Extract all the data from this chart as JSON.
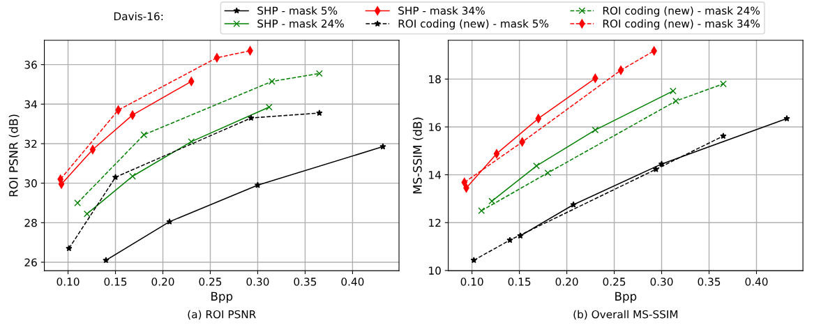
{
  "chart_data": [
    {
      "type": "line",
      "xlabel": "Bpp",
      "ylabel": "ROI PSNR (dB)",
      "annotations": [
        "(a) ROI PSNR"
      ],
      "legend": "top",
      "legend_title": "Davis-16:",
      "grid": true,
      "xlim": [
        0.075,
        0.449
      ],
      "ylim": [
        25.57,
        37.23
      ],
      "xticks": [
        {
          "value": 0.1,
          "label": "0.10"
        },
        0.15,
        {
          "value": 0.2,
          "label": "0.20"
        },
        0.25,
        {
          "value": 0.3,
          "label": "0.30"
        },
        0.35,
        {
          "value": 0.4,
          "label": "0.40"
        }
      ],
      "yticks": [
        26,
        28,
        30,
        32,
        34,
        36
      ],
      "series": [
        {
          "name": "SHP - mask 5%",
          "color": "#000000",
          "marker": "star",
          "line_style": "solid",
          "x": [
            0.14,
            0.207,
            0.3,
            0.432
          ],
          "values": [
            26.1,
            28.05,
            29.9,
            31.85
          ]
        },
        {
          "name": "SHP - mask 24%",
          "color": "#008000",
          "marker": "cross",
          "line_style": "solid",
          "x": [
            0.12,
            0.168,
            0.23,
            0.312
          ],
          "values": [
            28.45,
            30.35,
            32.1,
            33.85
          ]
        },
        {
          "name": "SHP - mask 34%",
          "color": "#ff0000",
          "marker": "diamond",
          "line_style": "solid",
          "x": [
            0.093,
            0.126,
            0.168,
            0.23
          ],
          "values": [
            29.95,
            31.7,
            33.45,
            35.15
          ]
        },
        {
          "name": "ROI coding (new) - mask 5%",
          "color": "#000000",
          "marker": "star",
          "line_style": "dashed",
          "x": [
            0.101,
            0.15,
            0.293,
            0.365
          ],
          "values": [
            26.7,
            30.3,
            33.3,
            33.55
          ]
        },
        {
          "name": "ROI coding (new) - mask 24%",
          "color": "#008000",
          "marker": "cross",
          "line_style": "dashed",
          "x": [
            0.11,
            0.18,
            0.315,
            0.365
          ],
          "values": [
            29.0,
            32.45,
            35.15,
            35.55
          ]
        },
        {
          "name": "ROI coding (new) - mask 34%",
          "color": "#ff0000",
          "marker": "diamond",
          "line_style": "dashed",
          "x": [
            0.092,
            0.153,
            0.257,
            0.292
          ],
          "values": [
            30.2,
            33.7,
            36.35,
            36.7
          ]
        }
      ]
    },
    {
      "type": "line",
      "xlabel": "Bpp",
      "ylabel": "MS-SSIM (dB)",
      "annotations": [
        "(b) Overall MS-SSIM"
      ],
      "grid": true,
      "xlim": [
        0.075,
        0.449
      ],
      "ylim": [
        9.99,
        19.62
      ],
      "xticks": [
        {
          "value": 0.1,
          "label": "0.10"
        },
        0.15,
        {
          "value": 0.2,
          "label": "0.20"
        },
        0.25,
        {
          "value": 0.3,
          "label": "0.30"
        },
        0.35,
        {
          "value": 0.4,
          "label": "0.40"
        }
      ],
      "yticks": [
        10,
        12,
        14,
        16,
        18
      ],
      "series": [
        {
          "name": "SHP - mask 5%",
          "color": "#000000",
          "marker": "star",
          "line_style": "solid",
          "x": [
            0.151,
            0.207,
            0.3,
            0.432
          ],
          "values": [
            11.45,
            12.75,
            14.45,
            16.35
          ]
        },
        {
          "name": "SHP - mask 24%",
          "color": "#008000",
          "marker": "cross",
          "line_style": "solid",
          "x": [
            0.121,
            0.168,
            0.23,
            0.312
          ],
          "values": [
            12.9,
            14.37,
            15.87,
            17.5
          ]
        },
        {
          "name": "SHP - mask 34%",
          "color": "#ff0000",
          "marker": "diamond",
          "line_style": "solid",
          "x": [
            0.094,
            0.126,
            0.17,
            0.23
          ],
          "values": [
            13.45,
            14.88,
            16.35,
            18.03
          ]
        },
        {
          "name": "ROI coding (new) - mask 5%",
          "color": "#000000",
          "marker": "star",
          "line_style": "dashed",
          "x": [
            0.102,
            0.14,
            0.294,
            0.365
          ],
          "values": [
            10.43,
            11.27,
            14.23,
            15.62
          ]
        },
        {
          "name": "ROI coding (new) - mask 24%",
          "color": "#008000",
          "marker": "cross",
          "line_style": "dashed",
          "x": [
            0.11,
            0.18,
            0.315,
            0.365
          ],
          "values": [
            12.5,
            14.08,
            17.08,
            17.8
          ]
        },
        {
          "name": "ROI coding (new) - mask 34%",
          "color": "#ff0000",
          "marker": "diamond",
          "line_style": "dashed",
          "x": [
            0.092,
            0.153,
            0.257,
            0.292
          ],
          "values": [
            13.68,
            15.37,
            18.37,
            19.18
          ]
        }
      ]
    }
  ]
}
